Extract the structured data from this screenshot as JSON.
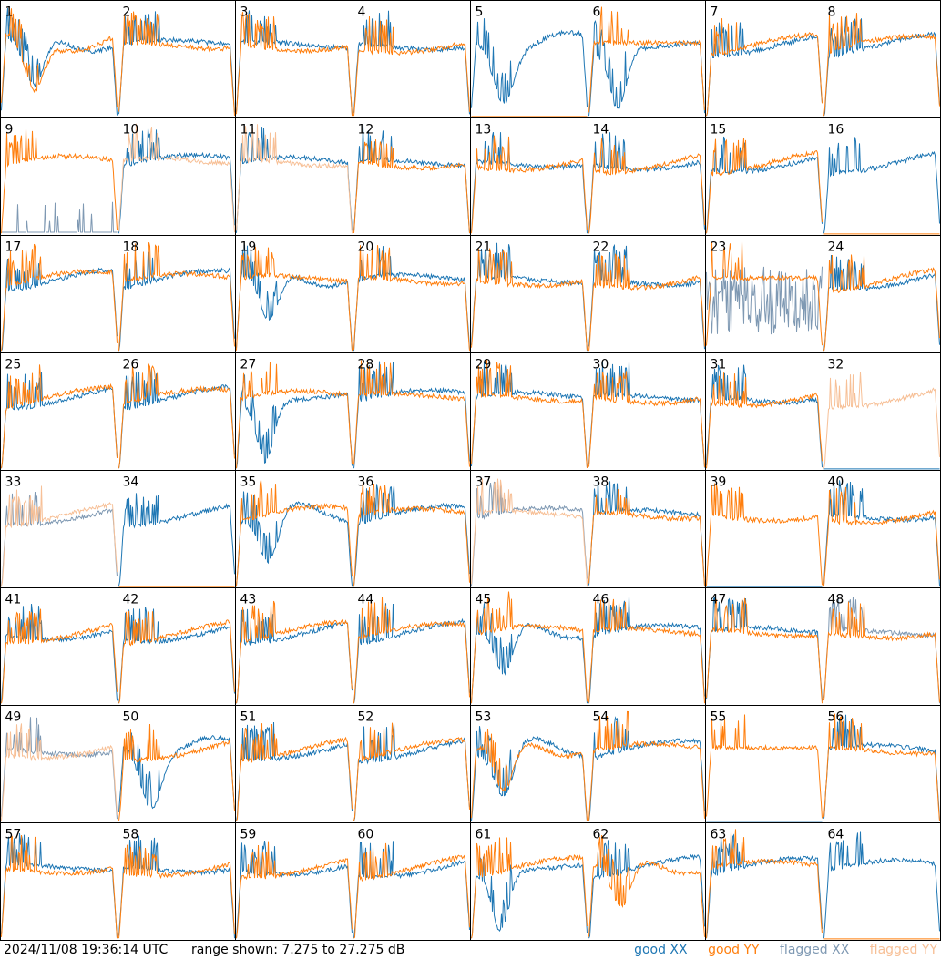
{
  "footer": {
    "timestamp": "2024/11/08 19:36:14 UTC",
    "range_text": "range shown: 7.275 to 27.275 dB"
  },
  "legend": [
    {
      "label": "good XX",
      "color": "#1f77b4"
    },
    {
      "label": "good YY",
      "color": "#ff7f0e"
    },
    {
      "label": "flagged XX",
      "color": "#7f99b3"
    },
    {
      "label": "flagged YY",
      "color": "#f7c097"
    }
  ],
  "chart_data": {
    "type": "line",
    "ylim": [
      7.275,
      27.275
    ],
    "units": "dB",
    "grid_rows": 8,
    "grid_cols": 8,
    "panels": [
      {
        "label": "1",
        "xx": "dip",
        "yy": "dip"
      },
      {
        "label": "2",
        "xx": "normal",
        "yy": "normal"
      },
      {
        "label": "3",
        "xx": "normal",
        "yy": "normal"
      },
      {
        "label": "4",
        "xx": "normal",
        "yy": "normal"
      },
      {
        "label": "5",
        "xx": "dip",
        "yy": "flat_low"
      },
      {
        "label": "6",
        "xx": "deep_dip",
        "yy": "high_flat"
      },
      {
        "label": "7",
        "xx": "normal",
        "yy": "normal"
      },
      {
        "label": "8",
        "xx": "normal",
        "yy": "normal"
      },
      {
        "label": "9",
        "xx": "flagged_low",
        "yy": "normal"
      },
      {
        "label": "10",
        "xx": "normal",
        "yy": "flagged_normal"
      },
      {
        "label": "11",
        "xx": "normal",
        "yy": "flagged_normal"
      },
      {
        "label": "12",
        "xx": "normal",
        "yy": "normal"
      },
      {
        "label": "13",
        "xx": "normal",
        "yy": "normal"
      },
      {
        "label": "14",
        "xx": "normal",
        "yy": "normal"
      },
      {
        "label": "15",
        "xx": "normal",
        "yy": "normal"
      },
      {
        "label": "16",
        "xx": "normal",
        "yy": "flat_low"
      },
      {
        "label": "17",
        "xx": "normal",
        "yy": "normal"
      },
      {
        "label": "18",
        "xx": "normal",
        "yy": "normal"
      },
      {
        "label": "19",
        "xx": "dip",
        "yy": "normal"
      },
      {
        "label": "20",
        "xx": "normal",
        "yy": "normal"
      },
      {
        "label": "21",
        "xx": "normal",
        "yy": "normal"
      },
      {
        "label": "22",
        "xx": "normal",
        "yy": "normal"
      },
      {
        "label": "23",
        "xx": "flagged_noise",
        "yy": "high_flat"
      },
      {
        "label": "24",
        "xx": "normal",
        "yy": "normal"
      },
      {
        "label": "25",
        "xx": "normal",
        "yy": "normal"
      },
      {
        "label": "26",
        "xx": "normal",
        "yy": "normal"
      },
      {
        "label": "27",
        "xx": "deep_dip",
        "yy": "normal"
      },
      {
        "label": "28",
        "xx": "normal",
        "yy": "normal"
      },
      {
        "label": "29",
        "xx": "normal",
        "yy": "normal"
      },
      {
        "label": "30",
        "xx": "normal",
        "yy": "normal"
      },
      {
        "label": "31",
        "xx": "normal",
        "yy": "normal"
      },
      {
        "label": "32",
        "xx": "flat_low",
        "yy": "flagged_normal"
      },
      {
        "label": "33",
        "xx": "flagged_normal",
        "yy": "flagged_normal"
      },
      {
        "label": "34",
        "xx": "normal",
        "yy": "flat_low"
      },
      {
        "label": "35",
        "xx": "dip",
        "yy": "normal"
      },
      {
        "label": "36",
        "xx": "normal",
        "yy": "normal"
      },
      {
        "label": "37",
        "xx": "flagged_normal",
        "yy": "flagged_normal"
      },
      {
        "label": "38",
        "xx": "normal",
        "yy": "normal"
      },
      {
        "label": "39",
        "xx": "flat_low",
        "yy": "normal"
      },
      {
        "label": "40",
        "xx": "normal",
        "yy": "normal"
      },
      {
        "label": "41",
        "xx": "normal",
        "yy": "normal"
      },
      {
        "label": "42",
        "xx": "normal",
        "yy": "normal"
      },
      {
        "label": "43",
        "xx": "normal",
        "yy": "normal"
      },
      {
        "label": "44",
        "xx": "normal",
        "yy": "normal"
      },
      {
        "label": "45",
        "xx": "dip",
        "yy": "normal"
      },
      {
        "label": "46",
        "xx": "normal",
        "yy": "normal"
      },
      {
        "label": "47",
        "xx": "normal",
        "yy": "normal"
      },
      {
        "label": "48",
        "xx": "flagged_normal",
        "yy": "normal"
      },
      {
        "label": "49",
        "xx": "flagged_normal",
        "yy": "flagged_normal"
      },
      {
        "label": "50",
        "xx": "dip",
        "yy": "normal"
      },
      {
        "label": "51",
        "xx": "normal",
        "yy": "normal"
      },
      {
        "label": "52",
        "xx": "normal",
        "yy": "normal"
      },
      {
        "label": "53",
        "xx": "dip",
        "yy": "dip"
      },
      {
        "label": "54",
        "xx": "normal",
        "yy": "normal"
      },
      {
        "label": "55",
        "xx": "flat_low",
        "yy": "high_flat"
      },
      {
        "label": "56",
        "xx": "normal",
        "yy": "normal"
      },
      {
        "label": "57",
        "xx": "normal",
        "yy": "normal"
      },
      {
        "label": "58",
        "xx": "normal",
        "yy": "normal"
      },
      {
        "label": "59",
        "xx": "normal",
        "yy": "normal"
      },
      {
        "label": "60",
        "xx": "normal",
        "yy": "normal"
      },
      {
        "label": "61",
        "xx": "deep_dip",
        "yy": "normal"
      },
      {
        "label": "62",
        "xx": "normal",
        "yy": "dip"
      },
      {
        "label": "63",
        "xx": "normal",
        "yy": "normal"
      },
      {
        "label": "64",
        "xx": "normal",
        "yy": "flat_low"
      }
    ]
  }
}
